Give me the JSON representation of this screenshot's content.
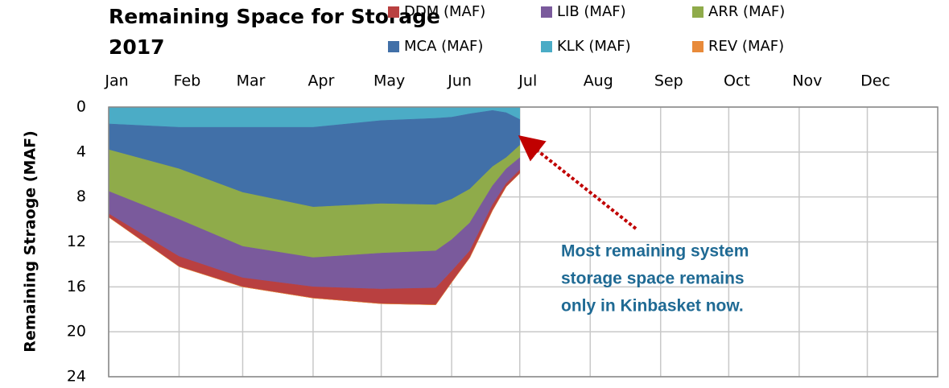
{
  "chart_data": {
    "type": "area",
    "title": "Remaining Space for Storage",
    "subtitle": "2017",
    "y_label": "Remaining Straoge (MAF)",
    "annotation": [
      "Most remaining system",
      "storage space remains",
      "only in Kinbasket now."
    ],
    "x": [
      1,
      32,
      60,
      91,
      121,
      145,
      152,
      160,
      170,
      176,
      182
    ],
    "xlim": [
      1,
      366
    ],
    "xticks": [
      {
        "value": 1,
        "label": "Jan"
      },
      {
        "value": 32,
        "label": "Feb"
      },
      {
        "value": 60,
        "label": "Mar"
      },
      {
        "value": 91,
        "label": "Apr"
      },
      {
        "value": 121,
        "label": "May"
      },
      {
        "value": 152,
        "label": "Jun"
      },
      {
        "value": 182,
        "label": "Jul"
      },
      {
        "value": 213,
        "label": "Aug"
      },
      {
        "value": 244,
        "label": "Sep"
      },
      {
        "value": 274,
        "label": "Oct"
      },
      {
        "value": 305,
        "label": "Nov"
      },
      {
        "value": 335,
        "label": "Dec"
      }
    ],
    "ylim": [
      0,
      24
    ],
    "yticks": [
      0,
      4,
      8,
      12,
      16,
      20,
      24
    ],
    "y_inverted": true,
    "stacked": true,
    "grid": true,
    "series": [
      {
        "name": "KLK (MAF)",
        "color": "#4bacc6",
        "values": [
          1.5,
          1.8,
          1.8,
          1.8,
          1.2,
          1.0,
          0.9,
          0.6,
          0.3,
          0.5,
          1.1
        ]
      },
      {
        "name": "MCA (MAF)",
        "color": "#4170a8",
        "values": [
          2.3,
          3.7,
          5.8,
          7.1,
          7.4,
          7.7,
          7.3,
          6.7,
          5.0,
          4.0,
          2.3
        ]
      },
      {
        "name": "ARR (MAF)",
        "color": "#8fab4a",
        "values": [
          3.7,
          4.5,
          4.8,
          4.5,
          4.4,
          4.1,
          3.6,
          3.0,
          1.7,
          1.0,
          1.1
        ]
      },
      {
        "name": "LIB (MAF)",
        "color": "#7a5a9c",
        "values": [
          2.0,
          3.3,
          2.8,
          2.6,
          3.2,
          3.3,
          2.8,
          2.5,
          1.7,
          1.3,
          1.1
        ]
      },
      {
        "name": "DDM (MAF)",
        "color": "#b94040",
        "values": [
          0.3,
          0.9,
          0.8,
          1.0,
          1.3,
          1.5,
          1.0,
          0.6,
          0.5,
          0.3,
          0.3
        ]
      },
      {
        "name": "REV (MAF)",
        "color": "#e88a3a",
        "values": [
          0,
          0,
          0,
          0,
          0,
          0,
          0,
          0,
          0,
          0,
          0
        ]
      }
    ]
  }
}
